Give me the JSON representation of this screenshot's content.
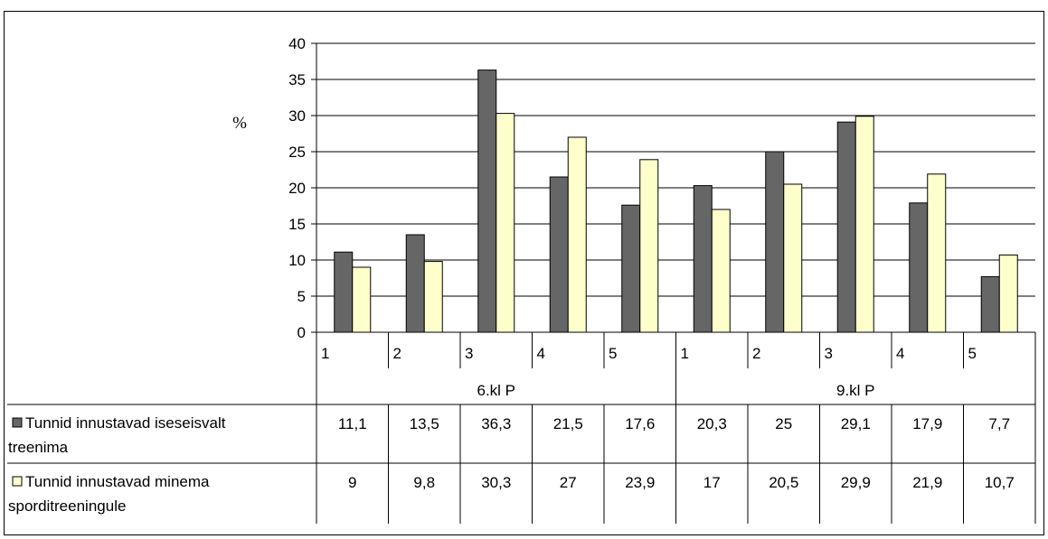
{
  "chart_data": {
    "type": "bar",
    "ylabel": "%",
    "ylim": [
      0,
      40
    ],
    "yticks": [
      "0",
      "5",
      "10",
      "15",
      "20",
      "25",
      "30",
      "35",
      "40"
    ],
    "grid": true,
    "legend_position": "left (in data table)",
    "groups": [
      {
        "label": "6.kl P",
        "categories": [
          "1",
          "2",
          "3",
          "4",
          "5"
        ]
      },
      {
        "label": "9.kl P",
        "categories": [
          "1",
          "2",
          "3",
          "4",
          "5"
        ]
      }
    ],
    "series": [
      {
        "name": "Tunnid innustavad iseseisvalt treenima",
        "color": "#666666",
        "values": [
          11.1,
          13.5,
          36.3,
          21.5,
          17.6,
          20.3,
          25,
          29.1,
          17.9,
          7.7
        ],
        "labels": [
          "11,1",
          "13,5",
          "36,3",
          "21,5",
          "17,6",
          "20,3",
          "25",
          "29,1",
          "17,9",
          "7,7"
        ]
      },
      {
        "name": "Tunnid innustavad minema sporditreeningule",
        "color": "#ffffcc",
        "values": [
          9,
          9.8,
          30.3,
          27,
          23.9,
          17,
          20.5,
          29.9,
          21.9,
          10.7
        ],
        "labels": [
          "9",
          "9,8",
          "30,3",
          "27",
          "23,9",
          "17",
          "20,5",
          "29,9",
          "21,9",
          "10,7"
        ]
      }
    ]
  }
}
